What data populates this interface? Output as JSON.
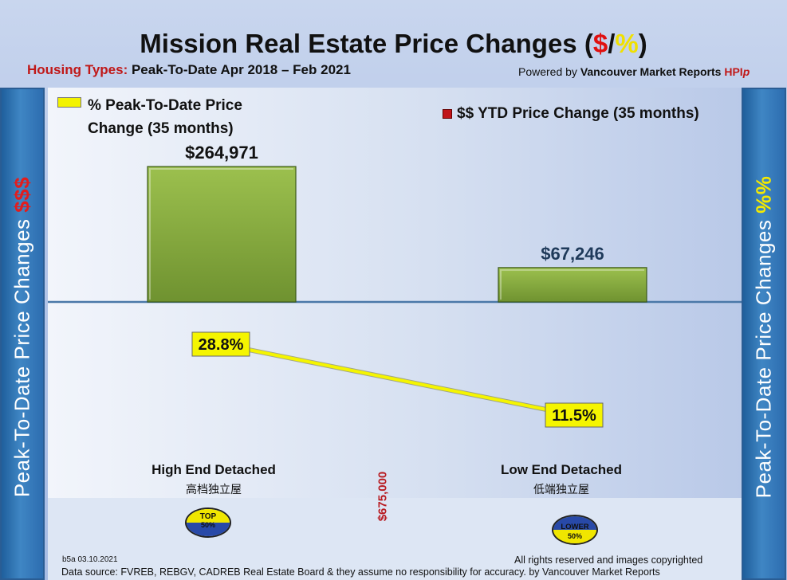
{
  "header": {
    "title_main": "Mission Real Estate Price Changes (",
    "title_dollar": "$",
    "title_slash": "/",
    "title_pct": "%",
    "title_close": ")",
    "subtitle_label": "Housing Types:",
    "subtitle_text": " Peak-To-Date Apr 2018 – Feb 2021",
    "powered_prefix": "Powered by ",
    "powered_brand": "Vancouver Market Reports",
    "powered_hpi": "HPI",
    "powered_hpi_suffix": "p"
  },
  "side_labels": {
    "left_text": "Peak-To-Date Price Changes ",
    "left_accent": "$$$",
    "right_text": "Peak-To-Date  Price  Changes  ",
    "right_accent": "%%"
  },
  "legend": {
    "pct_label": "% Peak-To-Date Price Change (35 months)",
    "dollar_label": "$$ YTD Price Change (35 months)"
  },
  "chart_data": {
    "type": "bar",
    "categories": [
      "High End Detached",
      "Low End Detached"
    ],
    "categories_zh": [
      "高档独立屋",
      "低端独立屋"
    ],
    "series": [
      {
        "name": "$$ YTD Price Change (35 months)",
        "type": "bar",
        "values": [
          264971,
          67246
        ],
        "labels": [
          "$264,971",
          "$67,246"
        ],
        "color": "#7fa23a"
      },
      {
        "name": "% Peak-To-Date Price Change (35 months)",
        "type": "line",
        "values": [
          28.8,
          11.5
        ],
        "labels": [
          "28.8%",
          "11.5%"
        ],
        "color": "#f5f500"
      }
    ],
    "price_threshold_label": "$675,000",
    "badges": [
      "TOP",
      "50%",
      "LOWER",
      "50%"
    ]
  },
  "footer": {
    "version": "b5a 03.10.2021",
    "rights": "All rights reserved and  images copyrighted",
    "source": "Data source: FVREB, REBGV, CADREB Real Estate Board & they assume no responsibility for accuracy. by Vancouver Market Reports"
  },
  "colors": {
    "side_panel": "#2d6db0",
    "bar_fill": "#7fa23a",
    "line": "#f5f500",
    "accent_red": "#e01010"
  }
}
